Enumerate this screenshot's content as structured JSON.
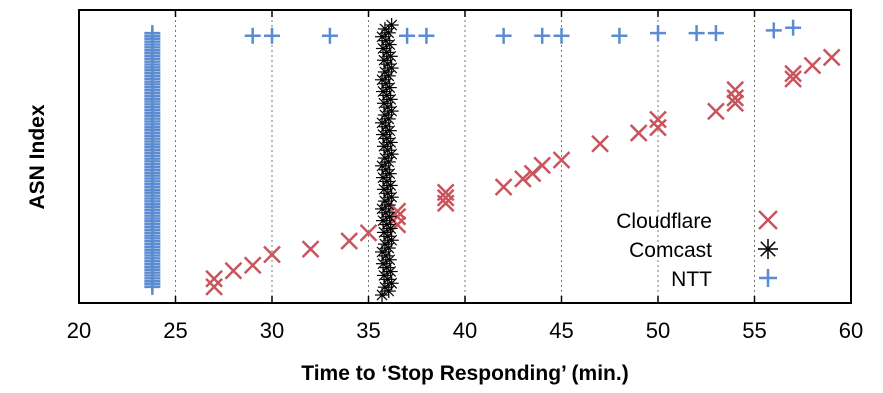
{
  "chart_data": {
    "type": "scatter",
    "xlabel": "Time to ‘Stop Responding’ (min.)",
    "ylabel": "ASN Index",
    "xlim": [
      20,
      60
    ],
    "ylim": [
      0,
      100
    ],
    "xticks": [
      20,
      25,
      30,
      35,
      40,
      45,
      50,
      55,
      60
    ],
    "xgrid": [
      25,
      30,
      35,
      40,
      45,
      50,
      55
    ],
    "grid": "vertical dotted",
    "legend_position": "right-center",
    "series": [
      {
        "name": "Cloudflare",
        "marker": "x",
        "color": "#c9545d",
        "points": [
          [
            27.0,
            3
          ],
          [
            27.0,
            6
          ],
          [
            28.0,
            9
          ],
          [
            29.0,
            11
          ],
          [
            30.0,
            15
          ],
          [
            32.0,
            17
          ],
          [
            34.0,
            20
          ],
          [
            35.0,
            23
          ],
          [
            36.5,
            26
          ],
          [
            36.5,
            29
          ],
          [
            36.5,
            31
          ],
          [
            39.0,
            34
          ],
          [
            39.0,
            36
          ],
          [
            39.0,
            38
          ],
          [
            42.0,
            40
          ],
          [
            43.0,
            43
          ],
          [
            43.5,
            45
          ],
          [
            44.0,
            48
          ],
          [
            45.0,
            50
          ],
          [
            47.0,
            56
          ],
          [
            49.0,
            60
          ],
          [
            50.0,
            62
          ],
          [
            50.0,
            65
          ],
          [
            53.0,
            68
          ],
          [
            54.0,
            71
          ],
          [
            54.0,
            73
          ],
          [
            54.0,
            76
          ],
          [
            57.0,
            80
          ],
          [
            57.0,
            82
          ],
          [
            58.0,
            85
          ],
          [
            59.0,
            88
          ]
        ]
      },
      {
        "name": "Comcast",
        "marker": "asterisk",
        "color": "#000000",
        "x_min": 35.7,
        "x_max": 36.2,
        "count": 70
      },
      {
        "name": "NTT",
        "marker": "plus",
        "color": "#5b8bd0",
        "x_constant": 23.8,
        "count": 90,
        "points": [
          [
            29.0,
            96
          ],
          [
            30.0,
            96
          ],
          [
            33.0,
            96
          ],
          [
            37.0,
            96
          ],
          [
            38.0,
            96
          ],
          [
            42.0,
            96
          ],
          [
            44.0,
            96
          ],
          [
            45.0,
            96
          ],
          [
            48.0,
            96
          ],
          [
            50.0,
            97
          ],
          [
            52.0,
            97
          ],
          [
            53.0,
            97
          ],
          [
            56.0,
            98
          ],
          [
            57.0,
            99
          ]
        ]
      }
    ]
  }
}
